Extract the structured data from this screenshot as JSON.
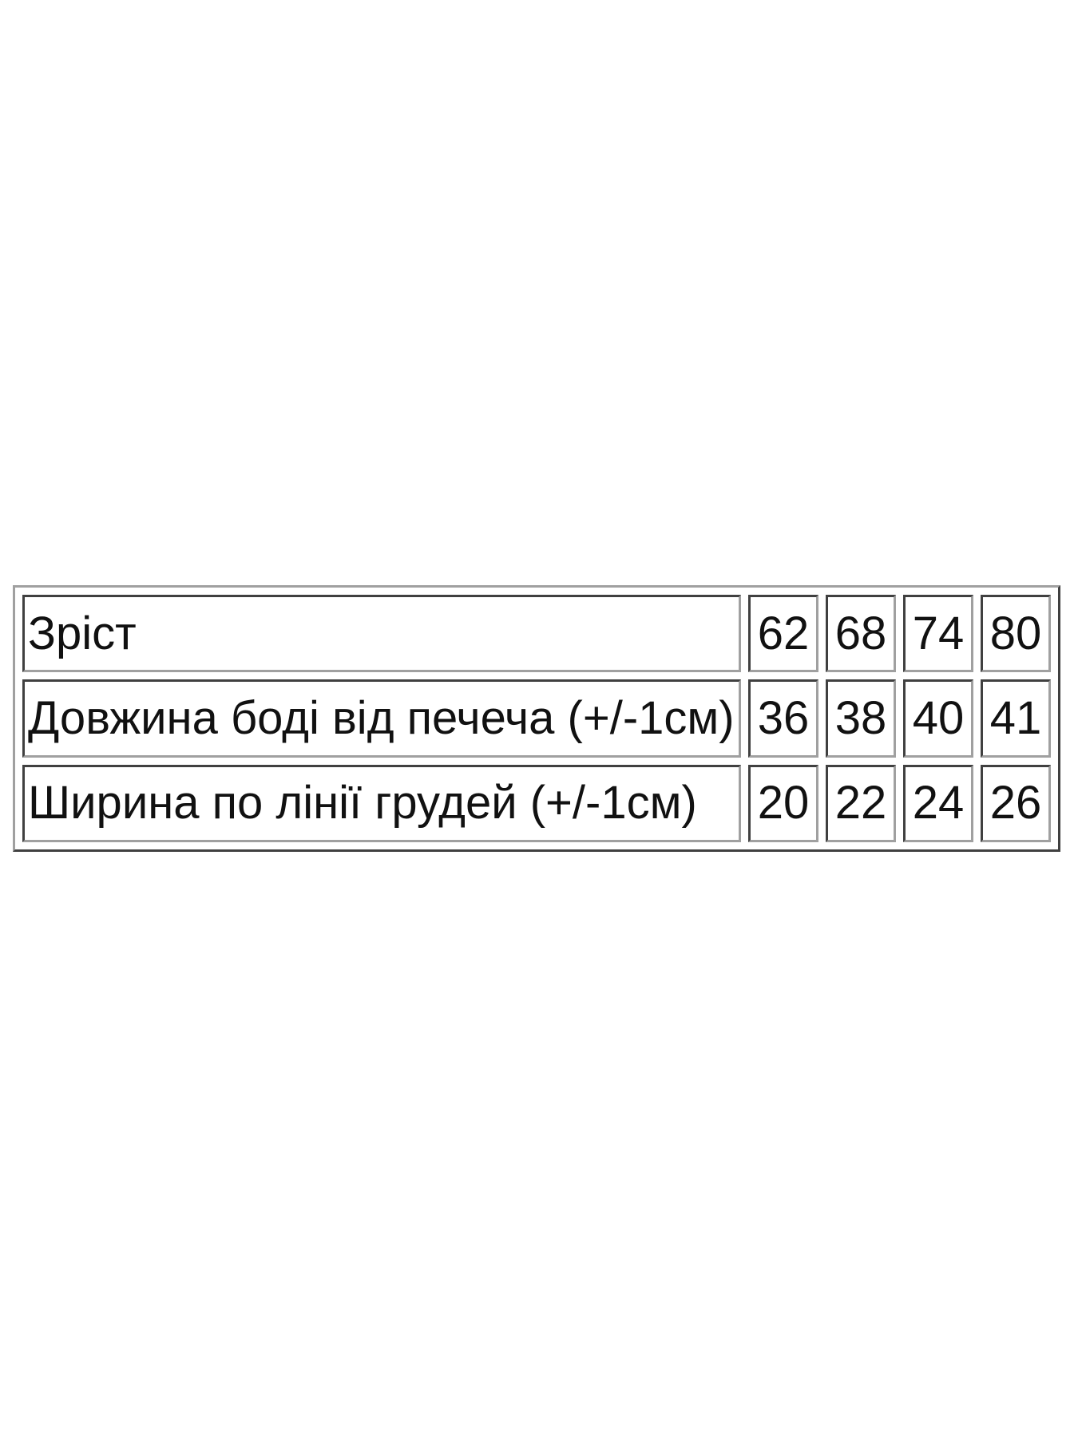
{
  "size_table": {
    "rows": [
      {
        "label": "Зріст",
        "values": [
          "62",
          "68",
          "74",
          "80"
        ]
      },
      {
        "label": "Довжина боді від печеча (+/-1см)",
        "values": [
          "36",
          "38",
          "40",
          "41"
        ]
      },
      {
        "label": "Ширина по лінії грудей (+/-1см)",
        "values": [
          "20",
          "22",
          "24",
          "26"
        ]
      }
    ]
  }
}
